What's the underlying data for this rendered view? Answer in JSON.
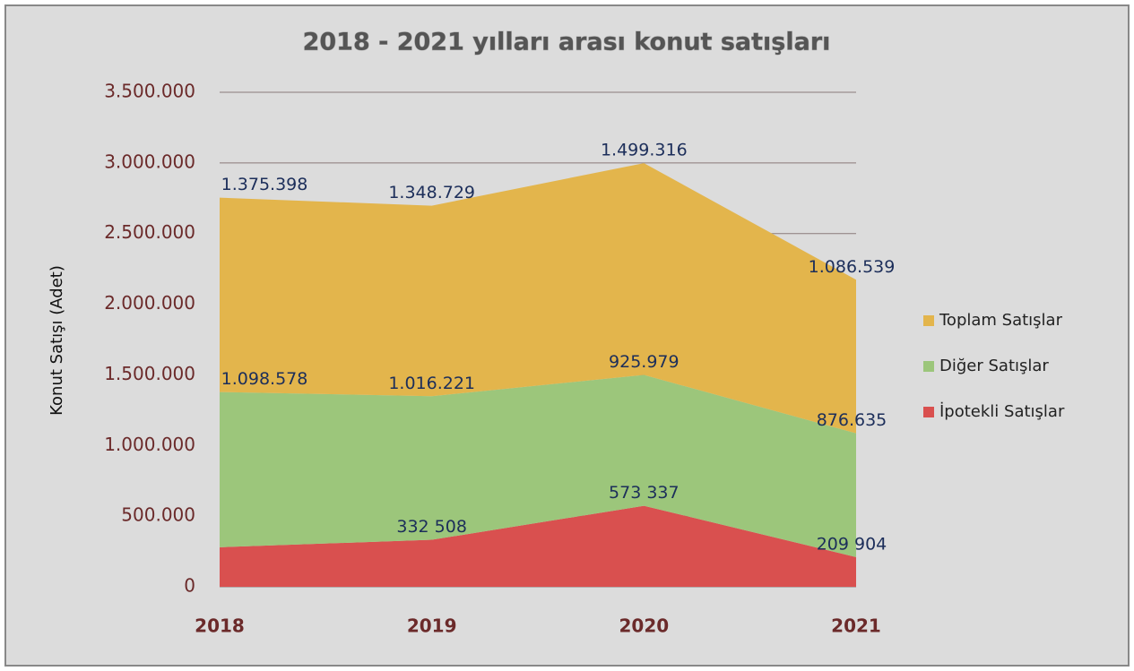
{
  "chart_data": {
    "type": "stacked_area",
    "title": "2018 - 2021 yılları arası konut satışları",
    "y_label": "Konut  Satışı (Adet)",
    "categories": [
      "2018",
      "2019",
      "2020",
      "2021"
    ],
    "series": [
      {
        "name": "Toplam Satışlar",
        "color": "#e3b54c",
        "values": [
          1375398,
          1348729,
          1499316,
          1086539
        ],
        "value_labels": [
          "1.375.398",
          "1.348.729",
          "1.499.316",
          "1.086.539"
        ]
      },
      {
        "name": "Diğer Satışlar",
        "color": "#9cc67b",
        "values": [
          1098578,
          1016221,
          925979,
          876635
        ],
        "value_labels": [
          "1.098.578",
          "1.016.221",
          "925.979",
          "876.635"
        ]
      },
      {
        "name": "İpotekli Satışlar",
        "color": "#d9504f",
        "values": [
          280000,
          332508,
          573337,
          209904
        ],
        "value_labels": [
          null,
          "332 508",
          "573 337",
          "209 904"
        ]
      }
    ],
    "ylim": [
      0,
      3500000
    ],
    "yticks": [
      0,
      {
        "value": 500000,
        "label": "500.000"
      },
      {
        "value": 1000000,
        "label": "1.000.000"
      },
      {
        "value": 1500000,
        "label": "1.500.000"
      },
      {
        "value": 2000000,
        "label": "2.000.000"
      },
      {
        "value": 2500000,
        "label": "2.500.000"
      },
      {
        "value": 3000000,
        "label": "3.000.000"
      },
      {
        "value": 3500000,
        "label": "3.500.000"
      }
    ],
    "grid": true
  }
}
